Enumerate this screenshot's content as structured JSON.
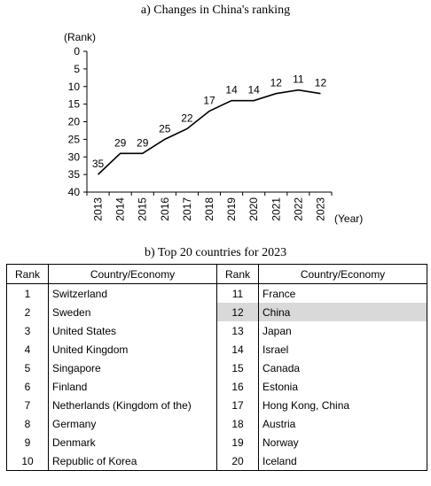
{
  "chart_title": "a) Changes in China's ranking",
  "table_title": "b) Top 20 countries for 2023",
  "chart_data": {
    "type": "line",
    "title": "a) Changes in China's ranking",
    "ylabel": "(Rank)",
    "xlabel": "(Year)",
    "x": [
      "2013",
      "2014",
      "2015",
      "2016",
      "2017",
      "2018",
      "2019",
      "2020",
      "2021",
      "2022",
      "2023"
    ],
    "values": [
      35,
      29,
      29,
      25,
      22,
      17,
      14,
      14,
      12,
      11,
      12
    ],
    "ylim": [
      0,
      40
    ],
    "y_inverted": true,
    "yticks": [
      0,
      5,
      10,
      15,
      20,
      25,
      30,
      35,
      40
    ],
    "grid": false,
    "line_color": "#000000"
  },
  "table": {
    "headers": [
      "Rank",
      "Country/Economy",
      "Rank",
      "Country/Economy"
    ],
    "highlight_color": "#d9d9d9",
    "rows": [
      {
        "rank_l": "1",
        "name_l": "Switzerland",
        "rank_r": "11",
        "name_r": "France",
        "highlight_right": false
      },
      {
        "rank_l": "2",
        "name_l": "Sweden",
        "rank_r": "12",
        "name_r": "China",
        "highlight_right": true
      },
      {
        "rank_l": "3",
        "name_l": "United States",
        "rank_r": "13",
        "name_r": "Japan",
        "highlight_right": false
      },
      {
        "rank_l": "4",
        "name_l": "United Kingdom",
        "rank_r": "14",
        "name_r": "Israel",
        "highlight_right": false
      },
      {
        "rank_l": "5",
        "name_l": "Singapore",
        "rank_r": "15",
        "name_r": "Canada",
        "highlight_right": false
      },
      {
        "rank_l": "6",
        "name_l": "Finland",
        "rank_r": "16",
        "name_r": "Estonia",
        "highlight_right": false
      },
      {
        "rank_l": "7",
        "name_l": "Netherlands (Kingdom of the)",
        "rank_r": "17",
        "name_r": "Hong Kong, China",
        "highlight_right": false
      },
      {
        "rank_l": "8",
        "name_l": "Germany",
        "rank_r": "18",
        "name_r": "Austria",
        "highlight_right": false
      },
      {
        "rank_l": "9",
        "name_l": "Denmark",
        "rank_r": "19",
        "name_r": "Norway",
        "highlight_right": false
      },
      {
        "rank_l": "10",
        "name_l": "Republic of Korea",
        "rank_r": "20",
        "name_r": "Iceland",
        "highlight_right": false
      }
    ]
  }
}
